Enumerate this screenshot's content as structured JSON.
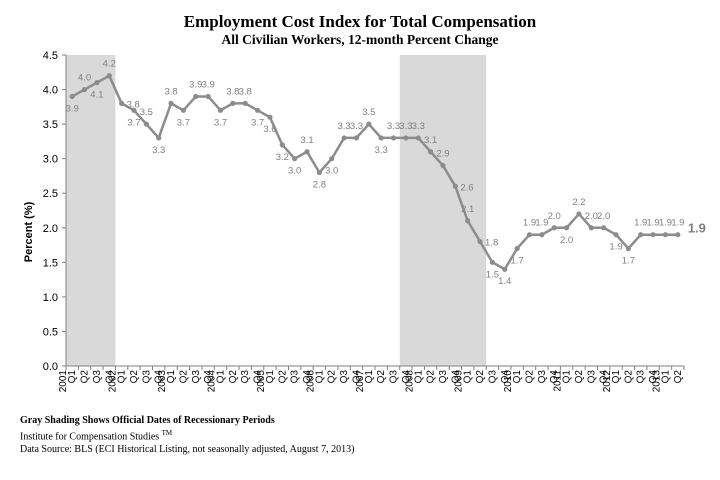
{
  "header": {
    "title": "Employment  Cost Index  for Total Compensation",
    "subtitle": "All Civilian Workers, 12-month Percent Change"
  },
  "footnotes": {
    "shading": "Gray Shading Shows Official Dates of Recessionary Periods",
    "institute": "Institute for Compensation Studies",
    "institute_mark": "TM",
    "source": "Data Source: BLS (ECI  Historical Listing, not seasonally adjusted, August 7, 2013)"
  },
  "colors": {
    "line": "#8c8c8c",
    "recession": "#d9d9d9",
    "axis": "#808080",
    "label": "#7f7f7f"
  },
  "chart_data": {
    "type": "line",
    "title": "Employment  Cost Index  for Total Compensation",
    "subtitle": "All Civilian Workers, 12-month Percent Change",
    "ylabel": "Percent  (%)",
    "xlabel": "",
    "ylim": [
      0.0,
      4.5
    ],
    "yticks": [
      "0.0",
      "0.5",
      "1.0",
      "1.5",
      "2.0",
      "2.5",
      "3.0",
      "3.5",
      "4.0",
      "4.5"
    ],
    "grid": false,
    "legend": "none",
    "years": [
      "2001",
      "2002",
      "2003",
      "2004",
      "2005",
      "2006",
      "2007",
      "2008",
      "2009",
      "2010",
      "2011",
      "2012",
      "2013"
    ],
    "categories": [
      "2001 Q1",
      "2001 Q2",
      "2001 Q3",
      "2001 Q4",
      "2002 Q1",
      "2002 Q2",
      "2002 Q3",
      "2002 Q4",
      "2003 Q1",
      "2003 Q2",
      "2003 Q3",
      "2003 Q4",
      "2004 Q1",
      "2004 Q2",
      "2004 Q3",
      "2004 Q4",
      "2005 Q1",
      "2005 Q2",
      "2005 Q3",
      "2005 Q4",
      "2006 Q1",
      "2006 Q2",
      "2006 Q3",
      "2006 Q4",
      "2007 Q1",
      "2007 Q2",
      "2007 Q3",
      "2007 Q4",
      "2008 Q1",
      "2008 Q2",
      "2008 Q3",
      "2008 Q4",
      "2009 Q1",
      "2009 Q2",
      "2009 Q3",
      "2009 Q4",
      "2010 Q1",
      "2010 Q2",
      "2010 Q3",
      "2010 Q4",
      "2011 Q1",
      "2011 Q2",
      "2011 Q3",
      "2011 Q4",
      "2012 Q1",
      "2012 Q2",
      "2012 Q3",
      "2012 Q4",
      "2013 Q1",
      "2013 Q2"
    ],
    "values": [
      3.9,
      4.0,
      4.1,
      4.2,
      3.8,
      3.7,
      3.5,
      3.3,
      3.8,
      3.7,
      3.9,
      3.9,
      3.7,
      3.8,
      3.8,
      3.7,
      3.6,
      3.2,
      3.0,
      3.1,
      2.8,
      3.0,
      3.3,
      3.3,
      3.5,
      3.3,
      3.3,
      3.3,
      3.3,
      3.1,
      2.9,
      2.6,
      2.1,
      1.8,
      1.5,
      1.4,
      1.7,
      1.9,
      1.9,
      2.0,
      2.0,
      2.2,
      2.0,
      2.0,
      1.9,
      1.7,
      1.9,
      1.9,
      1.9,
      1.9
    ],
    "data_label_text": [
      "3.9",
      "4.0",
      "4.1",
      "4.2",
      "3.8",
      "3.7",
      "3.5",
      "3.3",
      "3.8",
      "3.7",
      "3.9",
      "3.9",
      "3.7",
      "3.8",
      "3.8",
      "3.7",
      "3.6",
      "3.2",
      "3.0",
      "3.1",
      "2.8",
      "3.0",
      "3.3",
      "3.3",
      "3.5",
      "3.3",
      "3.3",
      "3.3",
      "3.3",
      "3.1",
      "2.9",
      "2.6",
      "2.1",
      "1.8",
      "1.5",
      "1.4",
      "1.7",
      "1.9",
      "1.9",
      "2.0",
      "2.0",
      "2.2",
      "2.0",
      "2.0",
      "1.9",
      "1.7",
      "1.9",
      "1.9",
      "1.9",
      "1.9"
    ],
    "label_side": [
      "below",
      "above",
      "below",
      "above",
      "right",
      "below",
      "above",
      "below",
      "above",
      "below",
      "above",
      "above",
      "below",
      "above",
      "above",
      "below",
      "below",
      "below",
      "below",
      "above",
      "below",
      "below",
      "above",
      "above",
      "above",
      "below",
      "above",
      "above",
      "above",
      "above",
      "above",
      "right",
      "above",
      "right",
      "below",
      "below",
      "below",
      "above",
      "above",
      "above",
      "below",
      "above",
      "above",
      "above",
      "below",
      "below",
      "above",
      "above",
      "above",
      "above"
    ],
    "final_label": "1.9",
    "recessions": [
      {
        "start": "2001 Q1",
        "end": "2001 Q4"
      },
      {
        "start": "2007 Q4",
        "end": "2009 Q2"
      }
    ]
  }
}
